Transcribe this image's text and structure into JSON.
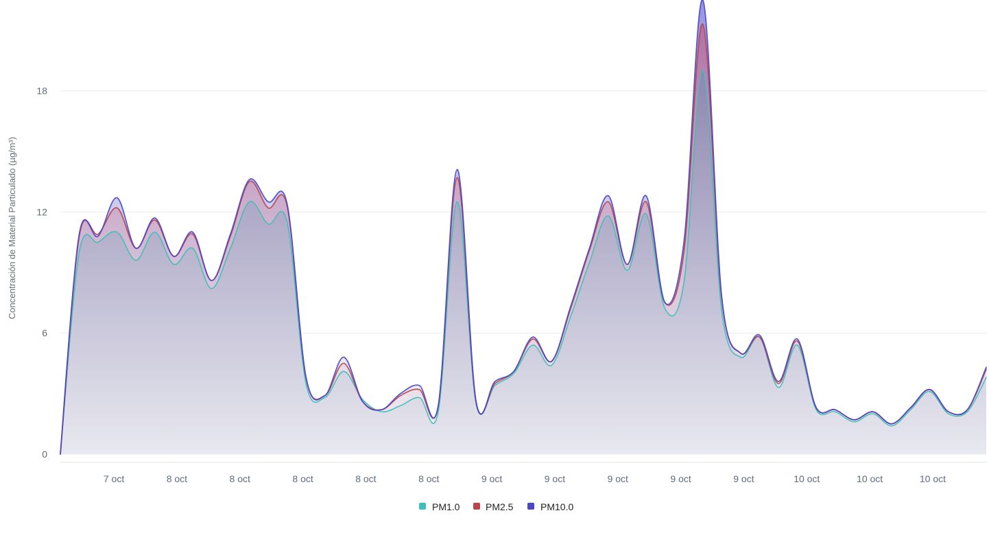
{
  "chart_data": {
    "type": "area",
    "title": "",
    "xlabel": "",
    "ylabel": "Concentración de Material Particulado (µg/m³)",
    "ylim": [
      0,
      22.5
    ],
    "yticks": [
      0,
      6,
      12,
      18
    ],
    "grid": true,
    "legend_position": "bottom-center",
    "x": [
      0,
      0.3,
      0.6,
      0.9,
      1.2,
      1.5,
      1.8,
      2.1,
      2.4,
      2.7,
      3.0,
      3.3,
      3.6,
      3.9,
      4.2,
      4.5,
      4.8,
      5.1,
      5.4,
      5.7,
      6.0,
      6.3,
      6.6,
      6.9,
      7.2,
      7.5,
      7.8,
      8.1,
      8.4,
      8.7,
      9.0,
      9.3,
      9.6,
      9.9,
      10.2,
      10.5,
      10.8,
      11.1,
      11.4,
      11.7,
      12.0,
      12.3,
      12.6,
      12.9,
      13.2,
      13.5,
      13.8,
      14.1,
      14.4,
      14.7
    ],
    "xticks": [
      {
        "x": 0.85,
        "label": "7 oct"
      },
      {
        "x": 1.85,
        "label": "8 oct"
      },
      {
        "x": 2.85,
        "label": "8 oct"
      },
      {
        "x": 3.85,
        "label": "8 oct"
      },
      {
        "x": 4.85,
        "label": "8 oct"
      },
      {
        "x": 5.85,
        "label": "8 oct"
      },
      {
        "x": 6.85,
        "label": "9 oct"
      },
      {
        "x": 7.85,
        "label": "9 oct"
      },
      {
        "x": 8.85,
        "label": "9 oct"
      },
      {
        "x": 9.85,
        "label": "9 oct"
      },
      {
        "x": 10.85,
        "label": "9 oct"
      },
      {
        "x": 11.85,
        "label": "10 oct"
      },
      {
        "x": 12.85,
        "label": "10 oct"
      },
      {
        "x": 13.85,
        "label": "10 oct"
      }
    ],
    "series": [
      {
        "name": "PM1.0",
        "color": "#3fbfb7",
        "values": [
          0,
          10.0,
          10.5,
          11.0,
          9.6,
          11.0,
          9.4,
          10.2,
          8.2,
          10.2,
          12.5,
          11.4,
          11.5,
          3.5,
          2.8,
          4.1,
          2.7,
          2.1,
          2.4,
          2.8,
          2.1,
          12.5,
          2.5,
          3.4,
          4.0,
          5.4,
          4.4,
          6.8,
          9.5,
          11.8,
          9.1,
          11.9,
          7.2,
          8.5,
          19.0,
          7.1,
          4.8,
          5.8,
          3.3,
          5.4,
          2.2,
          2.1,
          1.6,
          2.0,
          1.4,
          2.2,
          3.1,
          2.0,
          2.1,
          3.8
        ]
      },
      {
        "name": "PM2.5",
        "color": "#b9464c",
        "values": [
          0,
          10.8,
          10.9,
          12.2,
          10.2,
          11.6,
          9.8,
          10.9,
          8.6,
          10.8,
          13.5,
          12.2,
          12.3,
          3.8,
          2.9,
          4.5,
          2.6,
          2.2,
          2.9,
          3.2,
          2.4,
          13.7,
          2.6,
          3.5,
          4.1,
          5.7,
          4.6,
          7.2,
          10.1,
          12.5,
          9.4,
          12.5,
          7.5,
          10.0,
          21.3,
          7.7,
          5.0,
          5.8,
          3.5,
          5.6,
          2.3,
          2.2,
          1.7,
          2.1,
          1.5,
          2.3,
          3.2,
          2.1,
          2.2,
          4.2
        ]
      },
      {
        "name": "PM10.0",
        "color": "#4a47c5",
        "values": [
          0,
          10.9,
          10.8,
          12.7,
          10.2,
          11.7,
          9.8,
          11.0,
          8.6,
          10.9,
          13.6,
          12.5,
          12.4,
          3.8,
          2.9,
          4.8,
          2.6,
          2.2,
          3.0,
          3.4,
          2.4,
          14.1,
          2.6,
          3.6,
          4.1,
          5.8,
          4.6,
          7.3,
          10.2,
          12.8,
          9.4,
          12.8,
          7.5,
          10.5,
          22.5,
          7.8,
          5.0,
          5.9,
          3.6,
          5.7,
          2.3,
          2.2,
          1.7,
          2.1,
          1.5,
          2.3,
          3.2,
          2.1,
          2.2,
          4.3
        ]
      }
    ]
  }
}
